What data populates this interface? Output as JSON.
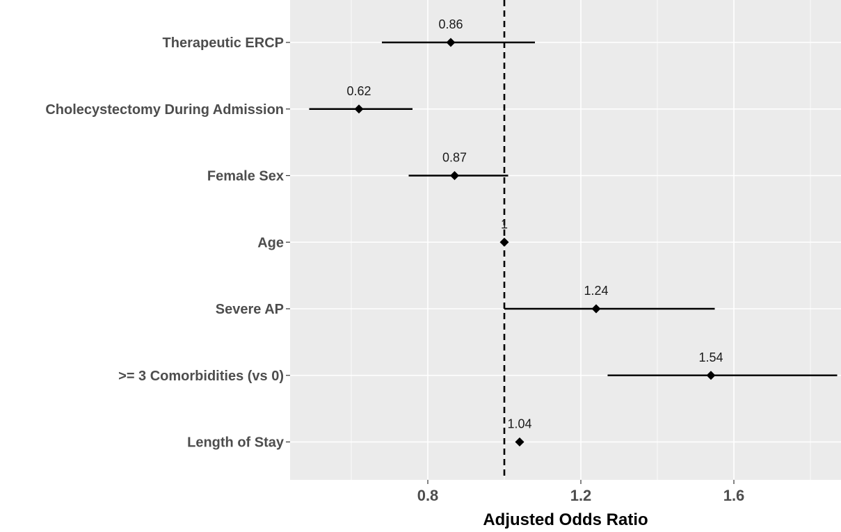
{
  "chart_data": {
    "type": "forest",
    "xlabel": "Adjusted Odds Ratio",
    "ylabel": "",
    "title": "",
    "xlim": [
      0.44,
      1.88
    ],
    "xticks": [
      0.8,
      1.2,
      1.6
    ],
    "xtick_labels": [
      "0.8",
      "1.2",
      "1.6"
    ],
    "minor_xticks": [
      0.6,
      1.0,
      1.4,
      1.8
    ],
    "reference_line": 1.0,
    "grid": true,
    "legend": "none",
    "rows": [
      {
        "label": "Therapeutic ERCP",
        "or": 0.86,
        "or_label": "0.86",
        "lower": 0.68,
        "upper": 1.08
      },
      {
        "label": "Cholecystectomy During Admission",
        "or": 0.62,
        "or_label": "0.62",
        "lower": 0.49,
        "upper": 0.76
      },
      {
        "label": "Female Sex",
        "or": 0.87,
        "or_label": "0.87",
        "lower": 0.75,
        "upper": 1.01
      },
      {
        "label": "Age",
        "or": 1.0,
        "or_label": "1",
        "lower": 0.995,
        "upper": 1.005
      },
      {
        "label": "Severe AP",
        "or": 1.24,
        "or_label": "1.24",
        "lower": 1.0,
        "upper": 1.55
      },
      {
        "label": ">= 3 Comorbidities (vs 0)",
        "or": 1.54,
        "or_label": "1.54",
        "lower": 1.27,
        "upper": 1.87
      },
      {
        "label": "Length of Stay",
        "or": 1.04,
        "or_label": "1.04",
        "lower": 1.03,
        "upper": 1.05
      }
    ]
  }
}
